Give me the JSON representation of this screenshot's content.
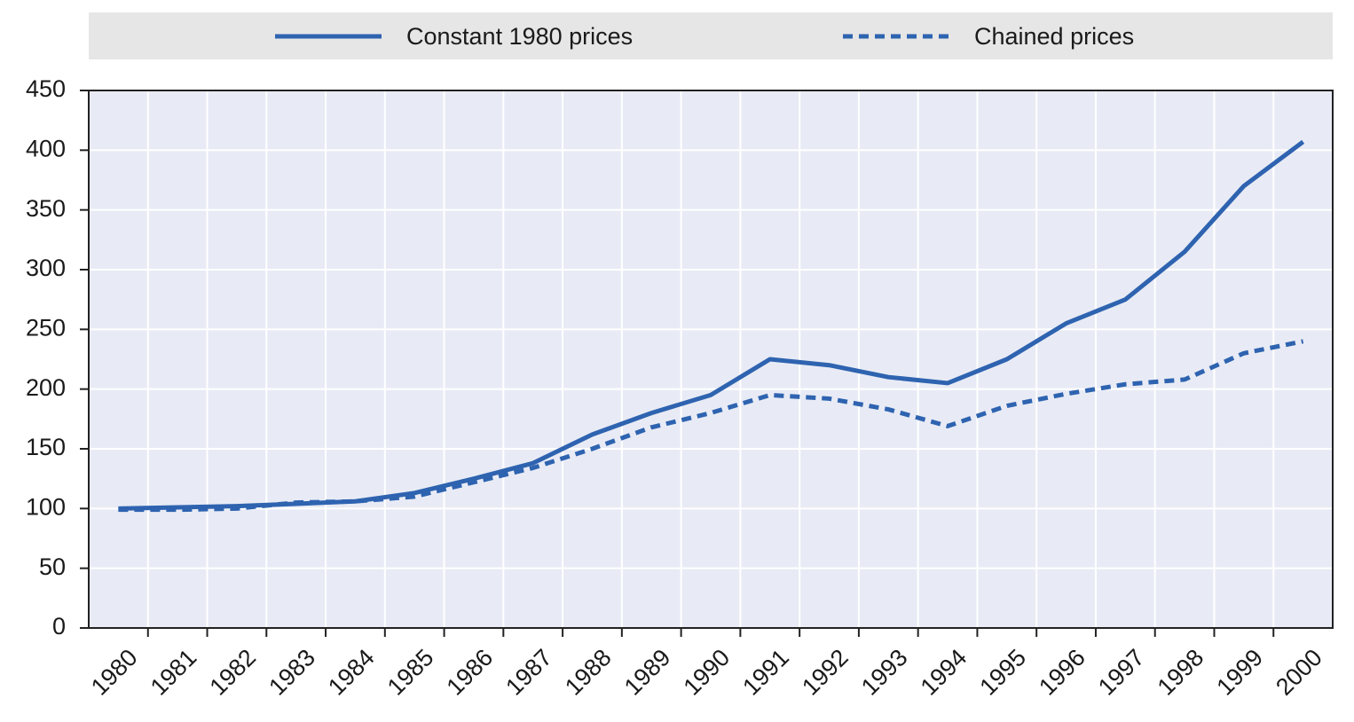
{
  "chart_data": {
    "type": "line",
    "categories": [
      "1980",
      "1981",
      "1982",
      "1983",
      "1984",
      "1985",
      "1986",
      "1987",
      "1988",
      "1989",
      "1990",
      "1991",
      "1992",
      "1993",
      "1994",
      "1995",
      "1996",
      "1997",
      "1998",
      "1999",
      "2000"
    ],
    "series": [
      {
        "name": "Constant 1980 prices",
        "color": "#2e63b0",
        "style": "solid",
        "values": [
          100,
          101,
          102,
          104,
          106,
          113,
          125,
          138,
          162,
          180,
          195,
          225,
          220,
          210,
          205,
          225,
          255,
          275,
          315,
          370,
          407
        ]
      },
      {
        "name": "Chained prices",
        "color": "#2e63b0",
        "style": "dashed",
        "values": [
          99,
          99,
          100,
          105,
          106,
          110,
          122,
          134,
          150,
          168,
          180,
          195,
          192,
          183,
          169,
          186,
          196,
          204,
          208,
          230,
          240
        ]
      }
    ],
    "ylim": [
      0,
      450
    ],
    "yticks": [
      0,
      50,
      100,
      150,
      200,
      250,
      300,
      350,
      400,
      450
    ],
    "grid": true,
    "legend": "top"
  }
}
